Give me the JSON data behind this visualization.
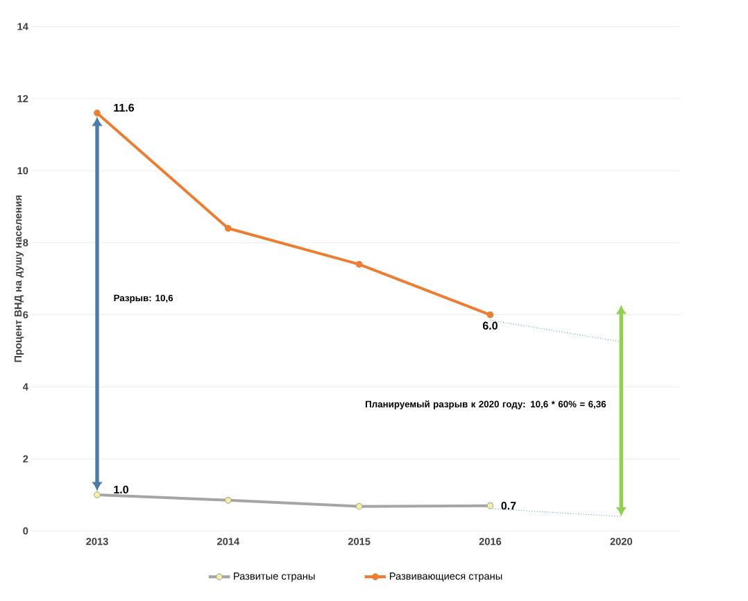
{
  "chart_data": {
    "type": "line",
    "ylabel": "Процент ВНД на душу населения",
    "categories": [
      "2013",
      "2014",
      "2015",
      "2016",
      "2020"
    ],
    "series": [
      {
        "name": "Развитые страны",
        "color": "#a5a5a5",
        "values": [
          1.0,
          0.85,
          0.68,
          0.7,
          null
        ],
        "value_labels": [
          "1.0",
          null,
          null,
          "0.7",
          null
        ]
      },
      {
        "name": "Развивающиеся страны",
        "color": "#ed7d31",
        "values": [
          11.6,
          8.4,
          7.4,
          6.0,
          null
        ],
        "value_labels": [
          "11.6",
          null,
          null,
          "6.0",
          null
        ]
      },
      {
        "type": "line",
        "color": "#5b9bd5",
        "values": [
          null,
          null,
          null,
          0.62,
          0.4
        ],
        "line_style": "dotted",
        "marker": "none"
      },
      {
        "type": "line",
        "color": "#5b9bd5",
        "values": [
          null,
          null,
          null,
          5.85,
          5.25
        ],
        "line_style": "dotted",
        "marker": "none"
      }
    ],
    "ylim": [
      0,
      14
    ],
    "yticks": [
      0,
      2,
      4,
      6,
      8,
      10,
      12,
      14
    ],
    "grid": "y",
    "legend": "bottom",
    "marker": "circle",
    "annotations": [
      "Разрыв: 10,6",
      "Планируемый разрыв к 2020 году: 10,6 * 60% = 6,36"
    ]
  }
}
